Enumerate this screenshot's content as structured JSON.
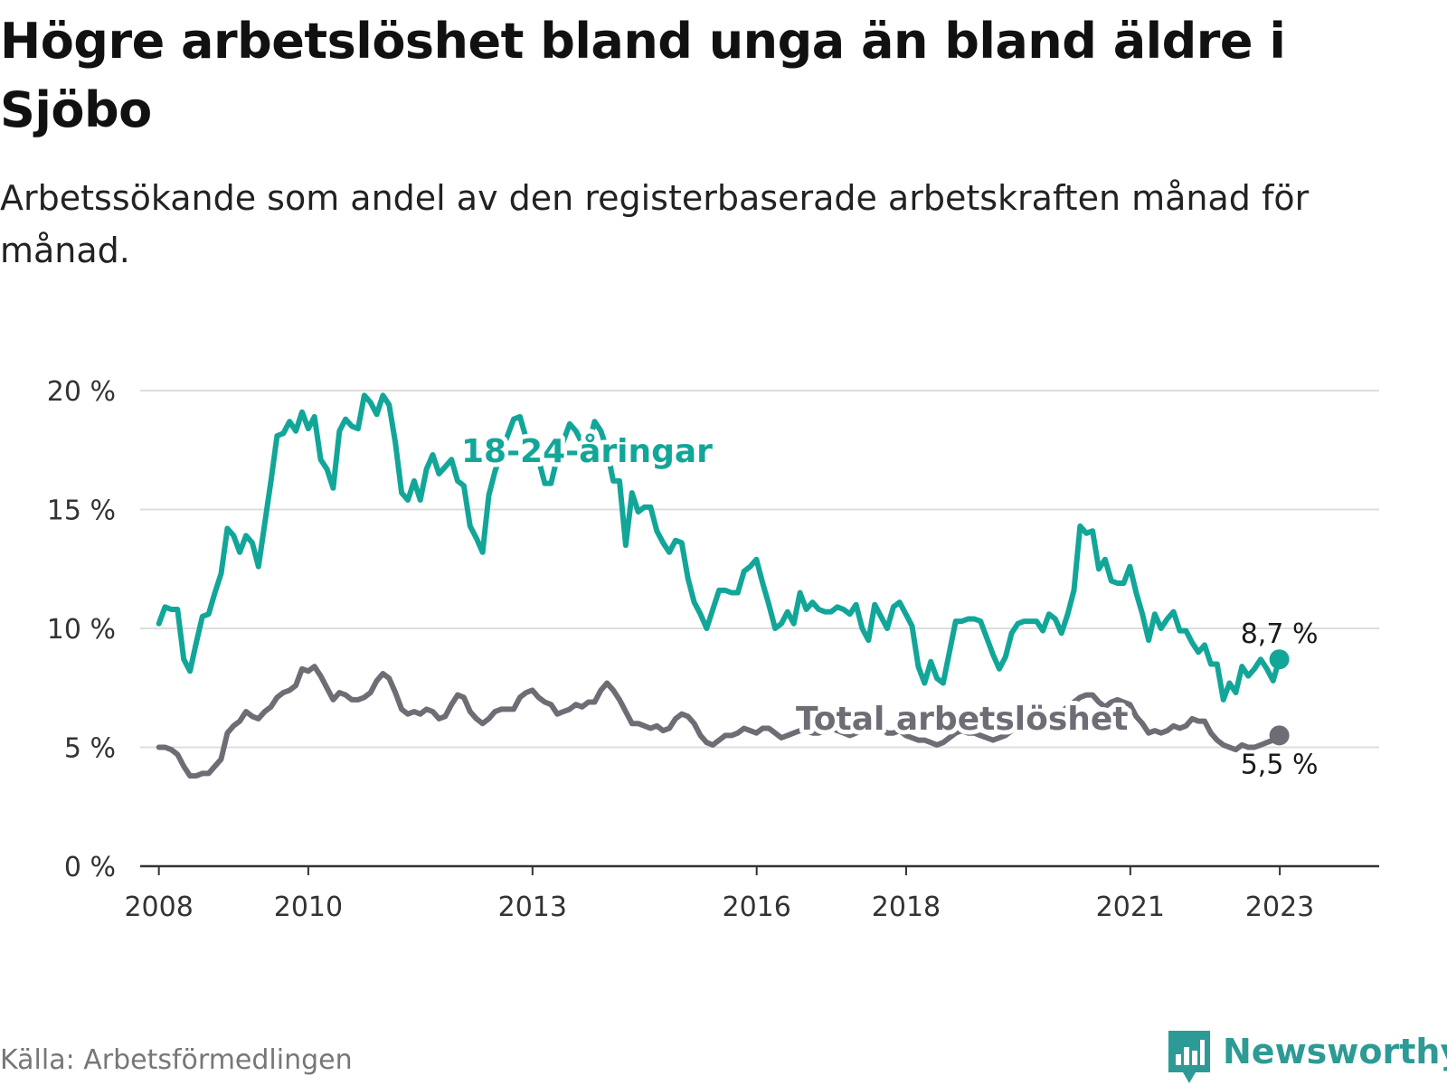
{
  "header": {
    "title": "Högre arbetslöshet bland unga än bland äldre i Sjöbo",
    "subtitle": "Arbetssökande som andel av den registerbaserade arbetskraften månad för månad."
  },
  "footer": {
    "source": "Källa: Arbetsförmedlingen",
    "brand": "Newsworthy"
  },
  "chart_data": {
    "type": "line",
    "title": "Högre arbetslöshet bland unga än bland äldre i Sjöbo",
    "subtitle": "Arbetssökande som andel av den registerbaserade arbetskraften månad för månad.",
    "xlabel": "",
    "ylabel": "",
    "ylim": [
      0,
      20
    ],
    "yticks": [
      0,
      5,
      10,
      15,
      20
    ],
    "ytick_labels": [
      "0 %",
      "5 %",
      "10 %",
      "15 %",
      "20 %"
    ],
    "xlim": [
      2007.75,
      2024.33
    ],
    "xticks": [
      2008,
      2010,
      2013,
      2016,
      2018,
      2021,
      2023
    ],
    "xtick_labels": [
      "2008",
      "2010",
      "2013",
      "2016",
      "2018",
      "2021",
      "2023"
    ],
    "grid": true,
    "colors": {
      "youth": "#12a699",
      "total": "#6e6d75",
      "grid": "#dddddd",
      "axis": "#333333"
    },
    "series": [
      {
        "name": "18-24-åringar",
        "label": "18-24-åringar",
        "end_label": "8,7 %",
        "start": 2008.0,
        "step": 0.0833,
        "values": [
          10.2,
          10.9,
          10.8,
          10.8,
          8.7,
          8.2,
          9.4,
          10.5,
          10.6,
          11.5,
          12.3,
          14.2,
          13.9,
          13.2,
          13.9,
          13.6,
          12.6,
          14.4,
          16.2,
          18.1,
          18.2,
          18.7,
          18.3,
          19.1,
          18.4,
          18.9,
          17.1,
          16.7,
          15.9,
          18.3,
          18.8,
          18.5,
          18.4,
          19.8,
          19.5,
          19.0,
          19.8,
          19.4,
          17.8,
          15.7,
          15.4,
          16.2,
          15.4,
          16.7,
          17.3,
          16.5,
          16.8,
          17.1,
          16.2,
          16.0,
          14.3,
          13.8,
          13.2,
          15.6,
          16.6,
          17.4,
          18.1,
          18.8,
          18.9,
          18.0,
          17.4,
          17.1,
          16.1,
          16.1,
          17.2,
          17.9,
          18.6,
          18.3,
          17.8,
          17.7,
          18.7,
          18.3,
          17.5,
          16.2,
          16.2,
          13.5,
          15.7,
          14.9,
          15.1,
          15.1,
          14.1,
          13.6,
          13.2,
          13.7,
          13.6,
          12.1,
          11.1,
          10.6,
          10.0,
          10.8,
          11.6,
          11.6,
          11.5,
          11.5,
          12.4,
          12.6,
          12.9,
          11.9,
          11.0,
          10.0,
          10.2,
          10.7,
          10.2,
          11.5,
          10.8,
          11.1,
          10.8,
          10.7,
          10.7,
          10.9,
          10.8,
          10.6,
          11.0,
          10.0,
          9.5,
          11.0,
          10.5,
          10.0,
          10.9,
          11.1,
          10.6,
          10.1,
          8.4,
          7.7,
          8.6,
          7.9,
          7.7,
          9.0,
          10.3,
          10.3,
          10.4,
          10.4,
          10.3,
          9.6,
          8.9,
          8.3,
          8.8,
          9.8,
          10.2,
          10.3,
          10.3,
          10.3,
          9.9,
          10.6,
          10.4,
          9.8,
          10.6,
          11.6,
          14.3,
          14.0,
          14.1,
          12.5,
          12.9,
          12.0,
          11.9,
          11.9,
          12.6,
          11.5,
          10.6,
          9.5,
          10.6,
          10.0,
          10.4,
          10.7,
          9.9,
          9.9,
          9.4,
          9.0,
          9.3,
          8.5,
          8.5,
          7.0,
          7.7,
          7.3,
          8.4,
          8.0,
          8.3,
          8.7,
          8.3,
          7.8,
          8.7
        ]
      },
      {
        "name": "Total arbetslöshet",
        "label": "Total arbetslöshet",
        "end_label": "5,5 %",
        "start": 2008.0,
        "step": 0.0833,
        "values": [
          5.0,
          5.0,
          4.9,
          4.7,
          4.2,
          3.8,
          3.8,
          3.9,
          3.9,
          4.2,
          4.5,
          5.6,
          5.9,
          6.1,
          6.5,
          6.3,
          6.2,
          6.5,
          6.7,
          7.1,
          7.3,
          7.4,
          7.6,
          8.3,
          8.2,
          8.4,
          8.0,
          7.5,
          7.0,
          7.3,
          7.2,
          7.0,
          7.0,
          7.1,
          7.3,
          7.8,
          8.1,
          7.9,
          7.3,
          6.6,
          6.4,
          6.5,
          6.4,
          6.6,
          6.5,
          6.2,
          6.3,
          6.8,
          7.2,
          7.1,
          6.5,
          6.2,
          6.0,
          6.2,
          6.5,
          6.6,
          6.6,
          6.6,
          7.1,
          7.3,
          7.4,
          7.1,
          6.9,
          6.8,
          6.4,
          6.5,
          6.6,
          6.8,
          6.7,
          6.9,
          6.9,
          7.4,
          7.7,
          7.4,
          7.0,
          6.5,
          6.0,
          6.0,
          5.9,
          5.8,
          5.9,
          5.7,
          5.8,
          6.2,
          6.4,
          6.3,
          6.0,
          5.5,
          5.2,
          5.1,
          5.3,
          5.5,
          5.5,
          5.6,
          5.8,
          5.7,
          5.6,
          5.8,
          5.8,
          5.6,
          5.4,
          5.5,
          5.6,
          5.7,
          5.7,
          5.6,
          5.6,
          5.7,
          5.8,
          5.7,
          5.6,
          5.5,
          5.6,
          5.7,
          5.8,
          5.9,
          5.8,
          5.6,
          5.6,
          5.7,
          5.5,
          5.4,
          5.3,
          5.3,
          5.2,
          5.1,
          5.2,
          5.4,
          5.6,
          5.7,
          5.6,
          5.6,
          5.5,
          5.4,
          5.3,
          5.4,
          5.5,
          5.7,
          5.8,
          5.8,
          6.0,
          6.1,
          6.2,
          6.3,
          6.4,
          6.5,
          6.7,
          6.9,
          7.1,
          7.2,
          7.2,
          6.9,
          6.7,
          6.9,
          7.0,
          6.9,
          6.8,
          6.3,
          6.0,
          5.6,
          5.7,
          5.6,
          5.7,
          5.9,
          5.8,
          5.9,
          6.2,
          6.1,
          6.1,
          5.6,
          5.3,
          5.1,
          5.0,
          4.9,
          5.1,
          5.0,
          5.0,
          5.1,
          5.2,
          5.3,
          5.5
        ]
      }
    ]
  }
}
